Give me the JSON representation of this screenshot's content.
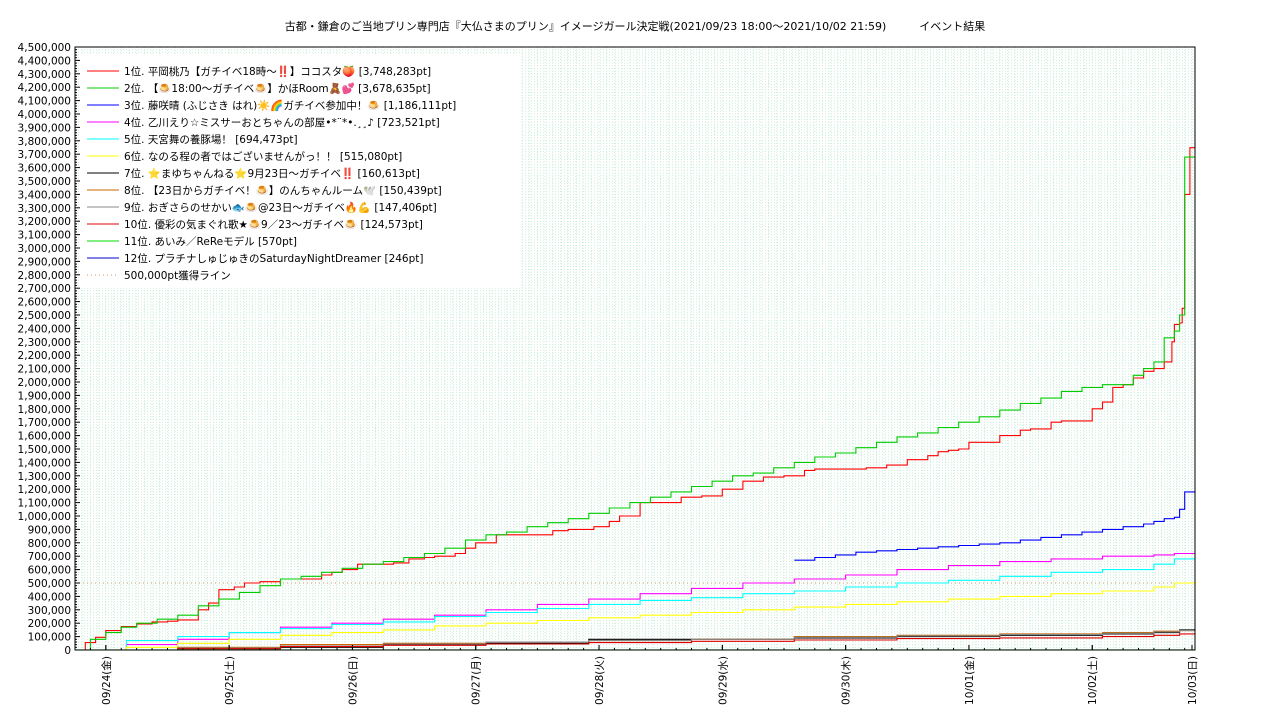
{
  "chart_data": {
    "type": "line",
    "title": "古都・鎌倉のご当地プリン専門店『大仏さまのプリン』イメージガール決定戦(2021/09/23 18:00～2021/10/02 21:59)　　　イベント結果",
    "xlabel": "",
    "ylabel": "",
    "ylim": [
      0,
      4500000
    ],
    "xlim": [
      0,
      218.0
    ],
    "grid": true,
    "legend_position": "top-left",
    "y_ticks": [
      {
        "v": 0,
        "label": "0"
      },
      {
        "v": 100000,
        "label": "100,000"
      },
      {
        "v": 200000,
        "label": "200,000"
      },
      {
        "v": 300000,
        "label": "300,000"
      },
      {
        "v": 400000,
        "label": "400,000"
      },
      {
        "v": 500000,
        "label": "500,000"
      },
      {
        "v": 600000,
        "label": "600,000"
      },
      {
        "v": 700000,
        "label": "700,000"
      },
      {
        "v": 800000,
        "label": "800,000"
      },
      {
        "v": 900000,
        "label": "900,000"
      },
      {
        "v": 1000000,
        "label": "1,000,000"
      },
      {
        "v": 1100000,
        "label": "1,100,000"
      },
      {
        "v": 1200000,
        "label": "1,200,000"
      },
      {
        "v": 1300000,
        "label": "1,300,000"
      },
      {
        "v": 1400000,
        "label": "1,400,000"
      },
      {
        "v": 1500000,
        "label": "1,500,000"
      },
      {
        "v": 1600000,
        "label": "1,600,000"
      },
      {
        "v": 1700000,
        "label": "1,700,000"
      },
      {
        "v": 1800000,
        "label": "1,800,000"
      },
      {
        "v": 1900000,
        "label": "1,900,000"
      },
      {
        "v": 2000000,
        "label": "2,000,000"
      },
      {
        "v": 2100000,
        "label": "2,100,000"
      },
      {
        "v": 2200000,
        "label": "2,200,000"
      },
      {
        "v": 2300000,
        "label": "2,300,000"
      },
      {
        "v": 2400000,
        "label": "2,400,000"
      },
      {
        "v": 2500000,
        "label": "2,500,000"
      },
      {
        "v": 2600000,
        "label": "2,600,000"
      },
      {
        "v": 2700000,
        "label": "2,700,000"
      },
      {
        "v": 2800000,
        "label": "2,800,000"
      },
      {
        "v": 2900000,
        "label": "2,900,000"
      },
      {
        "v": 3000000,
        "label": "3,000,000"
      },
      {
        "v": 3100000,
        "label": "3,100,000"
      },
      {
        "v": 3200000,
        "label": "3,200,000"
      },
      {
        "v": 3300000,
        "label": "3,300,000"
      },
      {
        "v": 3400000,
        "label": "3,400,000"
      },
      {
        "v": 3500000,
        "label": "3,500,000"
      },
      {
        "v": 3600000,
        "label": "3,600,000"
      },
      {
        "v": 3700000,
        "label": "3,700,000"
      },
      {
        "v": 3800000,
        "label": "3,800,000"
      },
      {
        "v": 3900000,
        "label": "3,900,000"
      },
      {
        "v": 4000000,
        "label": "4,000,000"
      },
      {
        "v": 4100000,
        "label": "4,100,000"
      },
      {
        "v": 4200000,
        "label": "4,200,000"
      },
      {
        "v": 4300000,
        "label": "4,300,000"
      },
      {
        "v": 4400000,
        "label": "4,400,000"
      },
      {
        "v": 4500000,
        "label": "4,500,000"
      }
    ],
    "x_ticks": [
      {
        "v": 6,
        "label": "09/24(金)"
      },
      {
        "v": 30,
        "label": "09/25(土)"
      },
      {
        "v": 54,
        "label": "09/26(日)"
      },
      {
        "v": 78,
        "label": "09/27(月)"
      },
      {
        "v": 102,
        "label": "09/28(火)"
      },
      {
        "v": 126,
        "label": "09/29(水)"
      },
      {
        "v": 150,
        "label": "09/30(木)"
      },
      {
        "v": 174,
        "label": "10/01(金)"
      },
      {
        "v": 198,
        "label": "10/02(土)"
      },
      {
        "v": 222,
        "label": "10/03(日)"
      }
    ],
    "reference_line": {
      "name": "500,000pt獲得ライン",
      "value": 500000,
      "color": "#cc9966"
    },
    "series": [
      {
        "name": "1位. 平岡桃乃【ガチイベ18時〜‼️】ココスタ🍑 [3,748,283pt]",
        "color": "#ff0000",
        "x": [
          0,
          2,
          4,
          6,
          9,
          12,
          15,
          18,
          20,
          24,
          26,
          28,
          31,
          33,
          36,
          40,
          44,
          48,
          50,
          52,
          55,
          58,
          62,
          65,
          68,
          70,
          72,
          74,
          76,
          78,
          82,
          86,
          90,
          93,
          96,
          99,
          101,
          104,
          106,
          110,
          114,
          118,
          120,
          122,
          126,
          130,
          134,
          138,
          140,
          142,
          144,
          146,
          150,
          154,
          158,
          162,
          166,
          168,
          170,
          172,
          174,
          176,
          180,
          184,
          186,
          188,
          190,
          192,
          196,
          198,
          200,
          202,
          204,
          206,
          208,
          210,
          212,
          213.5,
          214,
          215,
          215.5,
          216,
          217,
          218
        ],
        "y": [
          0,
          55000,
          95000,
          145000,
          175000,
          195000,
          210000,
          215000,
          225000,
          300000,
          350000,
          450000,
          470000,
          500000,
          510000,
          530000,
          530000,
          560000,
          580000,
          600000,
          640000,
          640000,
          650000,
          680000,
          690000,
          700000,
          700000,
          720000,
          760000,
          800000,
          860000,
          860000,
          860000,
          890000,
          900000,
          900000,
          920000,
          960000,
          1000000,
          1100000,
          1100000,
          1140000,
          1140000,
          1150000,
          1200000,
          1260000,
          1290000,
          1300000,
          1300000,
          1340000,
          1350000,
          1350000,
          1350000,
          1360000,
          1380000,
          1420000,
          1450000,
          1480000,
          1490000,
          1500000,
          1550000,
          1550000,
          1600000,
          1640000,
          1650000,
          1650000,
          1700000,
          1710000,
          1710000,
          1800000,
          1850000,
          1960000,
          1980000,
          2030000,
          2080000,
          2100000,
          2150000,
          2300000,
          2430000,
          2440000,
          2550000,
          3400000,
          3748283,
          3748283
        ]
      },
      {
        "name": "2位. 【🍮18:00〜ガチイベ🍮】かほRoom🧸💕 [3,678,635pt]",
        "color": "#00cc00",
        "x": [
          0,
          3,
          6,
          9,
          12,
          16,
          20,
          24,
          28,
          32,
          36,
          40,
          44,
          48,
          52,
          56,
          60,
          64,
          68,
          72,
          76,
          80,
          84,
          88,
          92,
          96,
          100,
          104,
          108,
          112,
          116,
          120,
          124,
          128,
          132,
          136,
          140,
          144,
          148,
          152,
          156,
          160,
          164,
          168,
          172,
          176,
          180,
          184,
          188,
          192,
          196,
          200,
          204,
          206,
          208,
          210,
          212,
          214,
          215,
          216,
          217,
          218
        ],
        "y": [
          0,
          80000,
          130000,
          170000,
          200000,
          230000,
          260000,
          330000,
          380000,
          430000,
          480000,
          530000,
          550000,
          580000,
          610000,
          640000,
          660000,
          690000,
          720000,
          760000,
          820000,
          860000,
          880000,
          920000,
          950000,
          980000,
          1020000,
          1060000,
          1100000,
          1140000,
          1180000,
          1220000,
          1260000,
          1300000,
          1320000,
          1360000,
          1400000,
          1440000,
          1470000,
          1510000,
          1550000,
          1590000,
          1620000,
          1660000,
          1700000,
          1740000,
          1790000,
          1840000,
          1880000,
          1930000,
          1960000,
          1980000,
          1980000,
          2050000,
          2100000,
          2150000,
          2330000,
          2380000,
          2500000,
          3678635,
          3678635,
          3678635
        ]
      },
      {
        "name": "3位. 藤咲晴 (ふじさき はれ)☀️🌈ガチイベ参加中！🍮 [1,186,111pt]",
        "color": "#0000ff",
        "x": [
          140,
          144,
          148,
          152,
          156,
          160,
          164,
          168,
          172,
          176,
          180,
          184,
          188,
          192,
          196,
          200,
          204,
          208,
          210,
          212,
          214,
          215,
          216,
          218
        ],
        "y": [
          670000,
          690000,
          710000,
          730000,
          740000,
          750000,
          760000,
          770000,
          780000,
          790000,
          800000,
          820000,
          840000,
          860000,
          880000,
          900000,
          920000,
          940000,
          960000,
          980000,
          990000,
          1050000,
          1180000,
          1186111
        ]
      },
      {
        "name": "4位. 乙川えり☆ミスサーおとちゃんの部屋•*¨*•.¸¸♪ [723,521pt]",
        "color": "#ff00ff",
        "x": [
          0,
          10,
          20,
          30,
          40,
          50,
          60,
          70,
          80,
          90,
          100,
          110,
          120,
          130,
          140,
          150,
          160,
          170,
          180,
          190,
          200,
          210,
          214,
          218
        ],
        "y": [
          0,
          40000,
          80000,
          130000,
          170000,
          200000,
          230000,
          260000,
          300000,
          340000,
          380000,
          420000,
          460000,
          500000,
          530000,
          560000,
          600000,
          630000,
          660000,
          680000,
          700000,
          710000,
          720000,
          723521
        ]
      },
      {
        "name": "5位. 天宮舞の養豚場！ [694,473pt]",
        "color": "#00ffff",
        "x": [
          0,
          10,
          20,
          30,
          40,
          50,
          60,
          70,
          80,
          90,
          100,
          110,
          120,
          130,
          140,
          150,
          160,
          170,
          180,
          190,
          200,
          210,
          214,
          218
        ],
        "y": [
          0,
          70000,
          100000,
          130000,
          160000,
          190000,
          210000,
          250000,
          280000,
          310000,
          340000,
          370000,
          390000,
          420000,
          440000,
          470000,
          500000,
          520000,
          550000,
          580000,
          600000,
          640000,
          680000,
          694473
        ]
      },
      {
        "name": "6位. なのる程の者ではございませんがっ！！ [515,080pt]",
        "color": "#ffff00",
        "x": [
          0,
          10,
          20,
          30,
          40,
          50,
          60,
          70,
          80,
          90,
          100,
          110,
          120,
          130,
          140,
          150,
          160,
          170,
          180,
          190,
          200,
          210,
          214,
          218
        ],
        "y": [
          0,
          20000,
          50000,
          80000,
          110000,
          130000,
          150000,
          180000,
          200000,
          220000,
          240000,
          260000,
          280000,
          300000,
          320000,
          340000,
          360000,
          380000,
          400000,
          420000,
          440000,
          470000,
          500000,
          515080
        ]
      },
      {
        "name": "7位. ⭐まゆちゃんねる⭐9月23日〜ガチイベ‼️ [160,613pt]",
        "color": "#000000",
        "x": [
          0,
          20,
          40,
          60,
          80,
          100,
          120,
          140,
          160,
          180,
          200,
          210,
          215,
          218
        ],
        "y": [
          0,
          10000,
          20000,
          40000,
          50000,
          80000,
          80000,
          90000,
          100000,
          110000,
          120000,
          130000,
          150000,
          160613
        ]
      },
      {
        "name": "8位. 【23日からガチイベ！🍮】のんちゃんルーム🕊️ [150,439pt]",
        "color": "#cc6600",
        "x": [
          0,
          20,
          40,
          60,
          80,
          100,
          120,
          140,
          160,
          180,
          200,
          210,
          215,
          218
        ],
        "y": [
          0,
          20000,
          40000,
          50000,
          60000,
          70000,
          80000,
          100000,
          110000,
          120000,
          130000,
          140000,
          145000,
          150439
        ]
      },
      {
        "name": "9位. おぎさらのせかい🐟🍮@23日〜ガチイベ🔥💪 [147,406pt]",
        "color": "#888888",
        "x": [
          0,
          20,
          40,
          60,
          80,
          100,
          120,
          140,
          160,
          180,
          200,
          210,
          215,
          218
        ],
        "y": [
          0,
          15000,
          30000,
          45000,
          60000,
          70000,
          80000,
          95000,
          105000,
          115000,
          125000,
          135000,
          145000,
          147406
        ]
      },
      {
        "name": "10位. 優彩の気まぐれ歌★🍮9／23〜ガチイベ🍮 [124,573pt]",
        "color": "#dd0000",
        "x": [
          0,
          20,
          40,
          60,
          80,
          100,
          120,
          140,
          160,
          180,
          200,
          210,
          215,
          218
        ],
        "y": [
          0,
          10000,
          25000,
          35000,
          45000,
          55000,
          65000,
          75000,
          85000,
          90000,
          100000,
          110000,
          120000,
          124573
        ]
      },
      {
        "name": "11位. あいみ／ReReモデル [570pt]",
        "color": "#00dd00",
        "x": [
          0,
          218
        ],
        "y": [
          570,
          570
        ]
      },
      {
        "name": "12位. プラチナしゅじゅきのSaturdayNightDreamer [246pt]",
        "color": "#0000cc",
        "x": [
          0,
          218
        ],
        "y": [
          246,
          246
        ]
      }
    ]
  }
}
